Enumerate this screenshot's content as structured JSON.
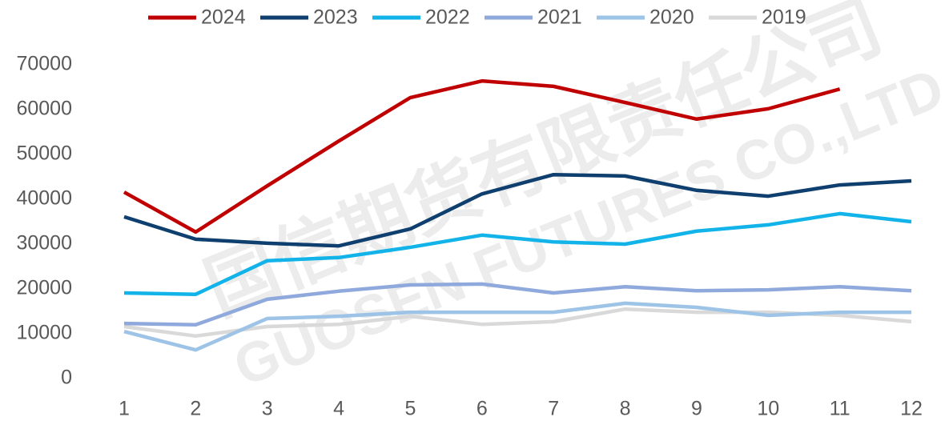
{
  "chart_data": {
    "type": "line",
    "categories": [
      1,
      2,
      3,
      4,
      5,
      6,
      7,
      8,
      9,
      10,
      11,
      12
    ],
    "series": [
      {
        "name": "2024",
        "color": "#c00000",
        "values": [
          41600,
          32700,
          43000,
          53000,
          62700,
          66400,
          65200,
          61600,
          57900,
          60200,
          64600,
          null
        ]
      },
      {
        "name": "2023",
        "color": "#0e3f6e",
        "values": [
          36100,
          31100,
          30200,
          29600,
          33400,
          41200,
          45500,
          45200,
          42000,
          40700,
          43200,
          44100
        ]
      },
      {
        "name": "2022",
        "color": "#12b3e8",
        "values": [
          19100,
          18800,
          26300,
          27000,
          29300,
          32000,
          30500,
          30000,
          32900,
          34300,
          36800,
          35000
        ]
      },
      {
        "name": "2021",
        "color": "#8fa9dc",
        "values": [
          12300,
          12000,
          17700,
          19500,
          20900,
          21100,
          19100,
          20500,
          19600,
          19800,
          20500,
          19600
        ]
      },
      {
        "name": "2020",
        "color": "#9dc3e6",
        "values": [
          10500,
          6400,
          13400,
          13900,
          14800,
          14800,
          14800,
          16800,
          15900,
          14100,
          14800,
          14800
        ]
      },
      {
        "name": "2019",
        "color": "#d9d9d9",
        "values": [
          11600,
          9500,
          11600,
          12100,
          13900,
          12100,
          12700,
          15500,
          14800,
          14800,
          14100,
          12700
        ]
      }
    ],
    "ylim": [
      0,
      70000
    ],
    "yticks": [
      0,
      10000,
      20000,
      30000,
      40000,
      50000,
      60000,
      70000
    ],
    "grid": false,
    "legend": "top",
    "watermark": [
      "国信期货有限责任公司",
      "GUOSEN FUTURES CO.,LTD"
    ]
  }
}
